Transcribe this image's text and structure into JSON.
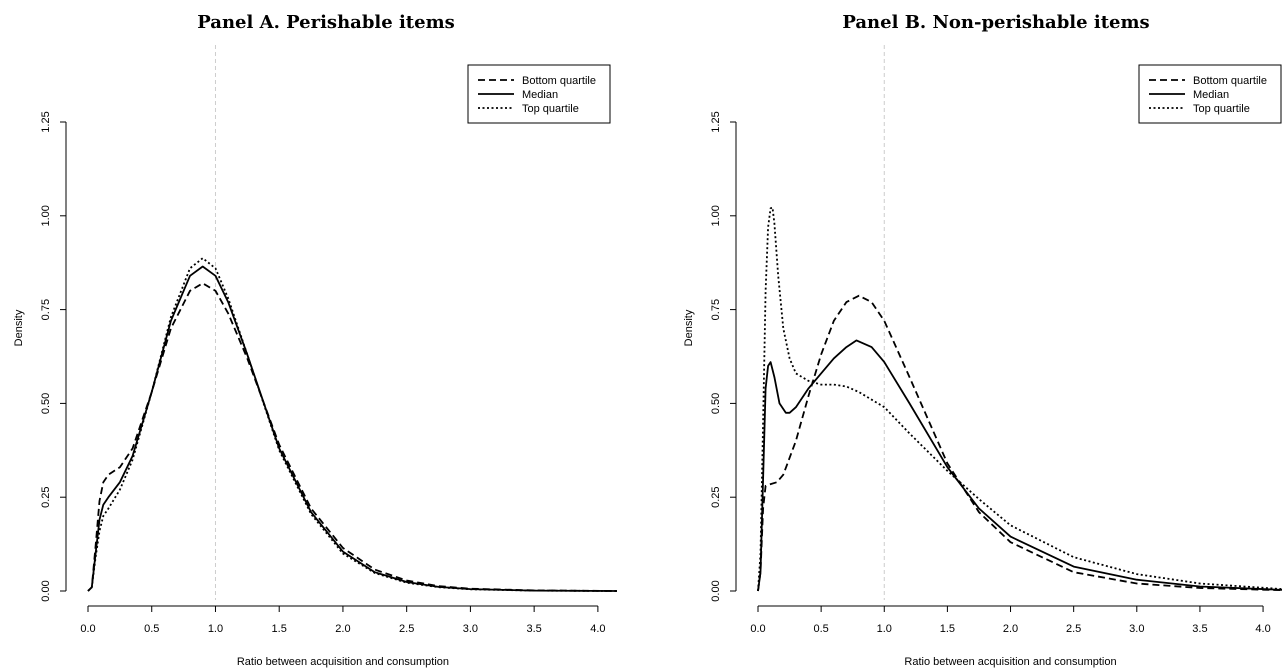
{
  "chart_data": [
    {
      "type": "line",
      "title": "Panel A. Perishable items",
      "xlabel": "Ratio between acquisition and consumption",
      "ylabel": "Density",
      "xlim": [
        0,
        4.15
      ],
      "ylim": [
        0,
        1.25
      ],
      "x_ticks": [
        "0.0",
        "0.5",
        "1.0",
        "1.5",
        "2.0",
        "2.5",
        "3.0",
        "3.5",
        "4.0"
      ],
      "y_ticks": [
        "0.00",
        "0.25",
        "0.50",
        "0.75",
        "1.00",
        "1.25"
      ],
      "reference_line_x": 1.0,
      "legend_position": "top-right",
      "series": [
        {
          "name": "Bottom quartile",
          "style": "dashed",
          "x": [
            0,
            0.03,
            0.06,
            0.09,
            0.12,
            0.16,
            0.25,
            0.35,
            0.5,
            0.65,
            0.8,
            0.9,
            1.0,
            1.1,
            1.25,
            1.5,
            1.75,
            2.0,
            2.25,
            2.5,
            2.75,
            3.0,
            3.5,
            4.15
          ],
          "y": [
            0,
            0.01,
            0.12,
            0.24,
            0.29,
            0.31,
            0.33,
            0.38,
            0.53,
            0.7,
            0.8,
            0.82,
            0.8,
            0.74,
            0.62,
            0.39,
            0.22,
            0.115,
            0.057,
            0.028,
            0.013,
            0.006,
            0.0015,
            0
          ]
        },
        {
          "name": "Median",
          "style": "solid",
          "x": [
            0,
            0.03,
            0.06,
            0.09,
            0.12,
            0.16,
            0.25,
            0.35,
            0.5,
            0.65,
            0.8,
            0.9,
            1.0,
            1.1,
            1.25,
            1.5,
            1.75,
            2.0,
            2.25,
            2.5,
            2.75,
            3.0,
            3.5,
            4.15
          ],
          "y": [
            0,
            0.01,
            0.1,
            0.19,
            0.23,
            0.25,
            0.29,
            0.36,
            0.53,
            0.72,
            0.84,
            0.865,
            0.84,
            0.77,
            0.63,
            0.38,
            0.21,
            0.105,
            0.05,
            0.024,
            0.011,
            0.005,
            0.001,
            0
          ]
        },
        {
          "name": "Top quartile",
          "style": "dotted",
          "x": [
            0,
            0.03,
            0.06,
            0.09,
            0.12,
            0.16,
            0.25,
            0.35,
            0.5,
            0.65,
            0.8,
            0.9,
            1.0,
            1.1,
            1.25,
            1.5,
            1.75,
            2.0,
            2.25,
            2.5,
            2.75,
            3.0,
            3.5,
            4.15
          ],
          "y": [
            0,
            0.01,
            0.09,
            0.16,
            0.2,
            0.22,
            0.27,
            0.35,
            0.53,
            0.73,
            0.86,
            0.887,
            0.86,
            0.78,
            0.63,
            0.375,
            0.205,
            0.1,
            0.048,
            0.022,
            0.01,
            0.0045,
            0.001,
            0
          ]
        }
      ]
    },
    {
      "type": "line",
      "title": "Panel B. Non-perishable items",
      "xlabel": "Ratio between acquisition and consumption",
      "ylabel": "Density",
      "xlim": [
        0,
        4.15
      ],
      "ylim": [
        0,
        1.25
      ],
      "x_ticks": [
        "0.0",
        "0.5",
        "1.0",
        "1.5",
        "2.0",
        "2.5",
        "3.0",
        "3.5",
        "4.0"
      ],
      "y_ticks": [
        "0.00",
        "0.25",
        "0.50",
        "0.75",
        "1.00",
        "1.25"
      ],
      "reference_line_x": 1.0,
      "legend_position": "top-right",
      "series": [
        {
          "name": "Bottom quartile",
          "style": "dashed",
          "x": [
            0,
            0.02,
            0.04,
            0.06,
            0.1,
            0.15,
            0.2,
            0.3,
            0.4,
            0.5,
            0.6,
            0.7,
            0.8,
            0.9,
            1.0,
            1.2,
            1.5,
            1.75,
            2.0,
            2.5,
            3.0,
            3.5,
            4.15
          ],
          "y": [
            0,
            0.05,
            0.22,
            0.28,
            0.285,
            0.29,
            0.31,
            0.4,
            0.52,
            0.63,
            0.72,
            0.77,
            0.787,
            0.77,
            0.72,
            0.57,
            0.34,
            0.21,
            0.13,
            0.05,
            0.02,
            0.008,
            0.002
          ]
        },
        {
          "name": "Median",
          "style": "solid",
          "x": [
            0,
            0.02,
            0.04,
            0.06,
            0.08,
            0.1,
            0.13,
            0.17,
            0.22,
            0.25,
            0.3,
            0.4,
            0.5,
            0.6,
            0.7,
            0.78,
            0.9,
            1.0,
            1.2,
            1.5,
            1.75,
            2.0,
            2.5,
            3.0,
            3.5,
            4.15
          ],
          "y": [
            0,
            0.05,
            0.3,
            0.54,
            0.6,
            0.61,
            0.57,
            0.5,
            0.475,
            0.475,
            0.49,
            0.54,
            0.58,
            0.62,
            0.65,
            0.668,
            0.65,
            0.61,
            0.5,
            0.33,
            0.22,
            0.145,
            0.065,
            0.03,
            0.012,
            0.003
          ]
        },
        {
          "name": "Top quartile",
          "style": "dotted",
          "x": [
            0,
            0.02,
            0.04,
            0.06,
            0.08,
            0.1,
            0.115,
            0.13,
            0.16,
            0.2,
            0.25,
            0.3,
            0.4,
            0.5,
            0.6,
            0.7,
            0.8,
            1.0,
            1.2,
            1.5,
            1.75,
            2.0,
            2.5,
            3.0,
            3.5,
            4.15
          ],
          "y": [
            0,
            0.1,
            0.45,
            0.8,
            0.97,
            1.02,
            1.022,
            0.98,
            0.84,
            0.7,
            0.62,
            0.58,
            0.56,
            0.55,
            0.55,
            0.545,
            0.53,
            0.49,
            0.42,
            0.32,
            0.245,
            0.175,
            0.09,
            0.045,
            0.02,
            0.005
          ]
        }
      ]
    }
  ]
}
